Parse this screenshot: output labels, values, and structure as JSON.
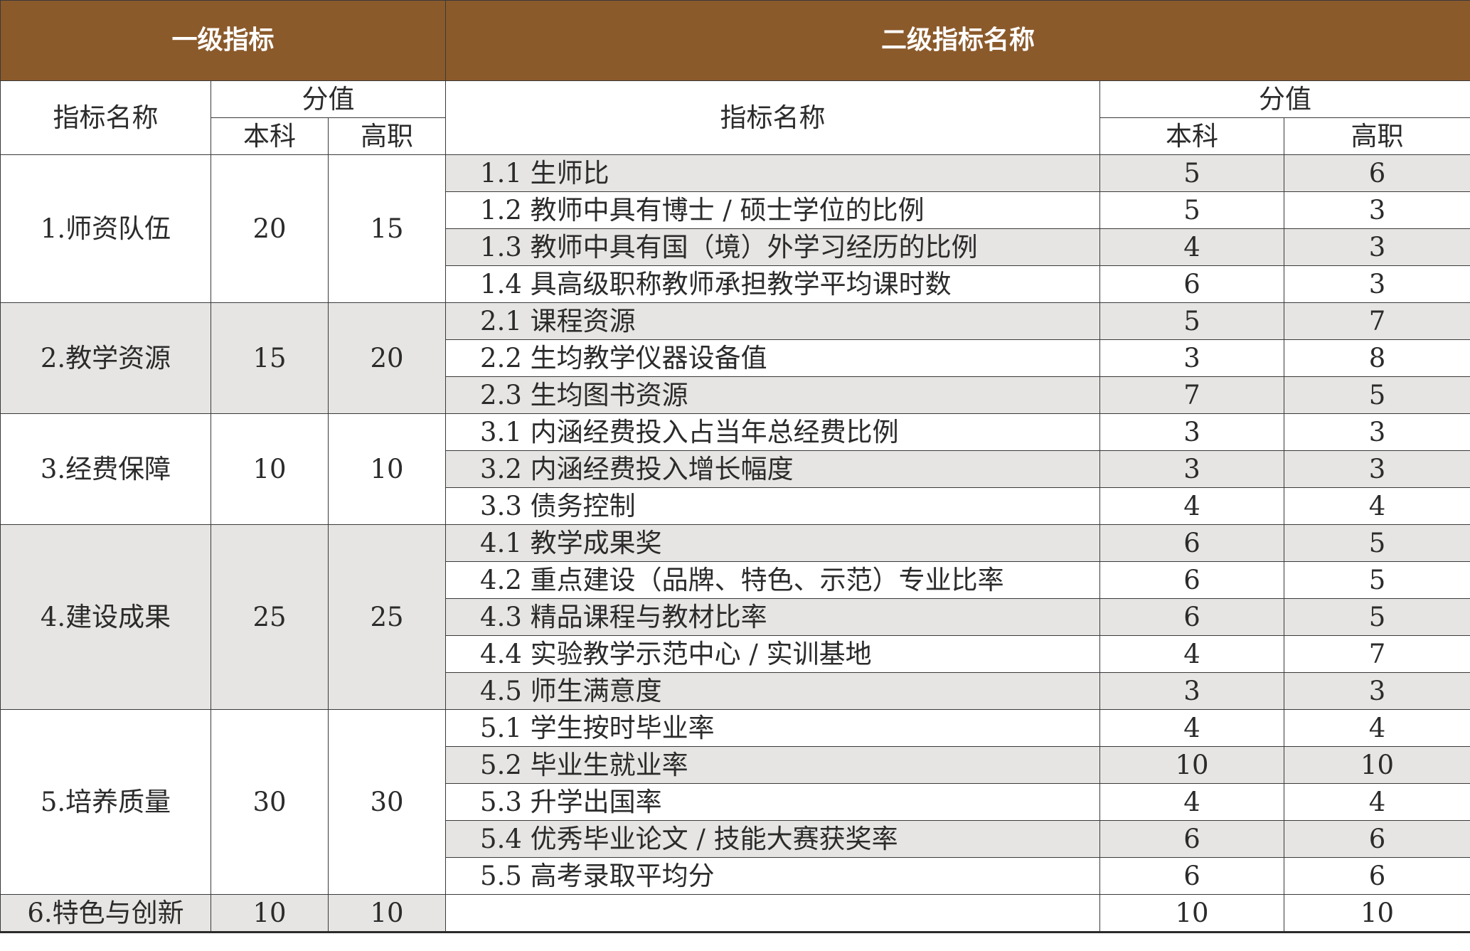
{
  "header": {
    "level1": "一级指标",
    "level2": "二级指标名称"
  },
  "subheader": {
    "name": "指标名称",
    "score": "分值",
    "undergrad": "本科",
    "vocational": "高职",
    "name2": "指标名称",
    "score2": "分值",
    "undergrad2": "本科",
    "vocational2": "高职"
  },
  "groups": [
    {
      "name": "1.师资队伍",
      "undergrad": "20",
      "vocational": "15",
      "shade": false,
      "items": [
        {
          "name": "1.1 生师比",
          "undergrad": "5",
          "vocational": "6"
        },
        {
          "name": "1.2 教师中具有博士 / 硕士学位的比例",
          "undergrad": "5",
          "vocational": "3"
        },
        {
          "name": "1.3 教师中具有国（境）外学习经历的比例",
          "undergrad": "4",
          "vocational": "3"
        },
        {
          "name": "1.4 具高级职称教师承担教学平均课时数",
          "undergrad": "6",
          "vocational": "3"
        }
      ]
    },
    {
      "name": "2.教学资源",
      "undergrad": "15",
      "vocational": "20",
      "shade": true,
      "items": [
        {
          "name": "2.1 课程资源",
          "undergrad": "5",
          "vocational": "7"
        },
        {
          "name": "2.2 生均教学仪器设备值",
          "undergrad": "3",
          "vocational": "8"
        },
        {
          "name": "2.3 生均图书资源",
          "undergrad": "7",
          "vocational": "5"
        }
      ]
    },
    {
      "name": "3.经费保障",
      "undergrad": "10",
      "vocational": "10",
      "shade": false,
      "items": [
        {
          "name": "3.1 内涵经费投入占当年总经费比例",
          "undergrad": "3",
          "vocational": "3"
        },
        {
          "name": "3.2 内涵经费投入增长幅度",
          "undergrad": "3",
          "vocational": "3"
        },
        {
          "name": "3.3 债务控制",
          "undergrad": "4",
          "vocational": "4"
        }
      ]
    },
    {
      "name": "4.建设成果",
      "undergrad": "25",
      "vocational": "25",
      "shade": true,
      "items": [
        {
          "name": "4.1 教学成果奖",
          "undergrad": "6",
          "vocational": "5"
        },
        {
          "name": "4.2 重点建设（品牌、特色、示范）专业比率",
          "undergrad": "6",
          "vocational": "5"
        },
        {
          "name": "4.3 精品课程与教材比率",
          "undergrad": "6",
          "vocational": "5"
        },
        {
          "name": "4.4 实验教学示范中心 / 实训基地",
          "undergrad": "4",
          "vocational": "7"
        },
        {
          "name": "4.5 师生满意度",
          "undergrad": "3",
          "vocational": "3"
        }
      ]
    },
    {
      "name": "5.培养质量",
      "undergrad": "30",
      "vocational": "30",
      "shade": false,
      "items": [
        {
          "name": "5.1 学生按时毕业率",
          "undergrad": "4",
          "vocational": "4"
        },
        {
          "name": "5.2 毕业生就业率",
          "undergrad": "10",
          "vocational": "10"
        },
        {
          "name": "5.3 升学出国率",
          "undergrad": "4",
          "vocational": "4"
        },
        {
          "name": "5.4 优秀毕业论文 / 技能大赛获奖率",
          "undergrad": "6",
          "vocational": "6"
        },
        {
          "name": "5.5 高考录取平均分",
          "undergrad": "6",
          "vocational": "6"
        }
      ]
    },
    {
      "name": "6.特色与创新",
      "undergrad": "10",
      "vocational": "10",
      "shade": true,
      "items": [
        {
          "name": "",
          "undergrad": "10",
          "vocational": "10"
        }
      ]
    }
  ]
}
